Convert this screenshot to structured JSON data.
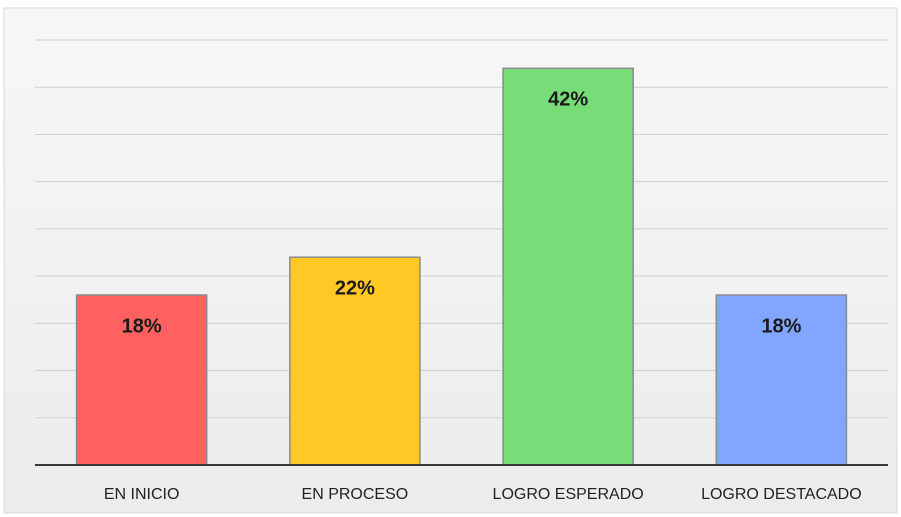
{
  "chart_data": {
    "type": "bar",
    "categories": [
      "EN INICIO",
      "EN PROCESO",
      "LOGRO ESPERADO",
      "LOGRO DESTACADO"
    ],
    "values": [
      18,
      22,
      42,
      18
    ],
    "value_labels": [
      "18%",
      "22%",
      "42%",
      "18%"
    ],
    "colors": [
      "#ff6161",
      "#ffc825",
      "#78dc78",
      "#80a6ff"
    ],
    "ylim": [
      0,
      45
    ],
    "yticks": [
      0,
      5,
      10,
      15,
      20,
      25,
      30,
      35,
      40,
      45
    ],
    "grid": true
  }
}
